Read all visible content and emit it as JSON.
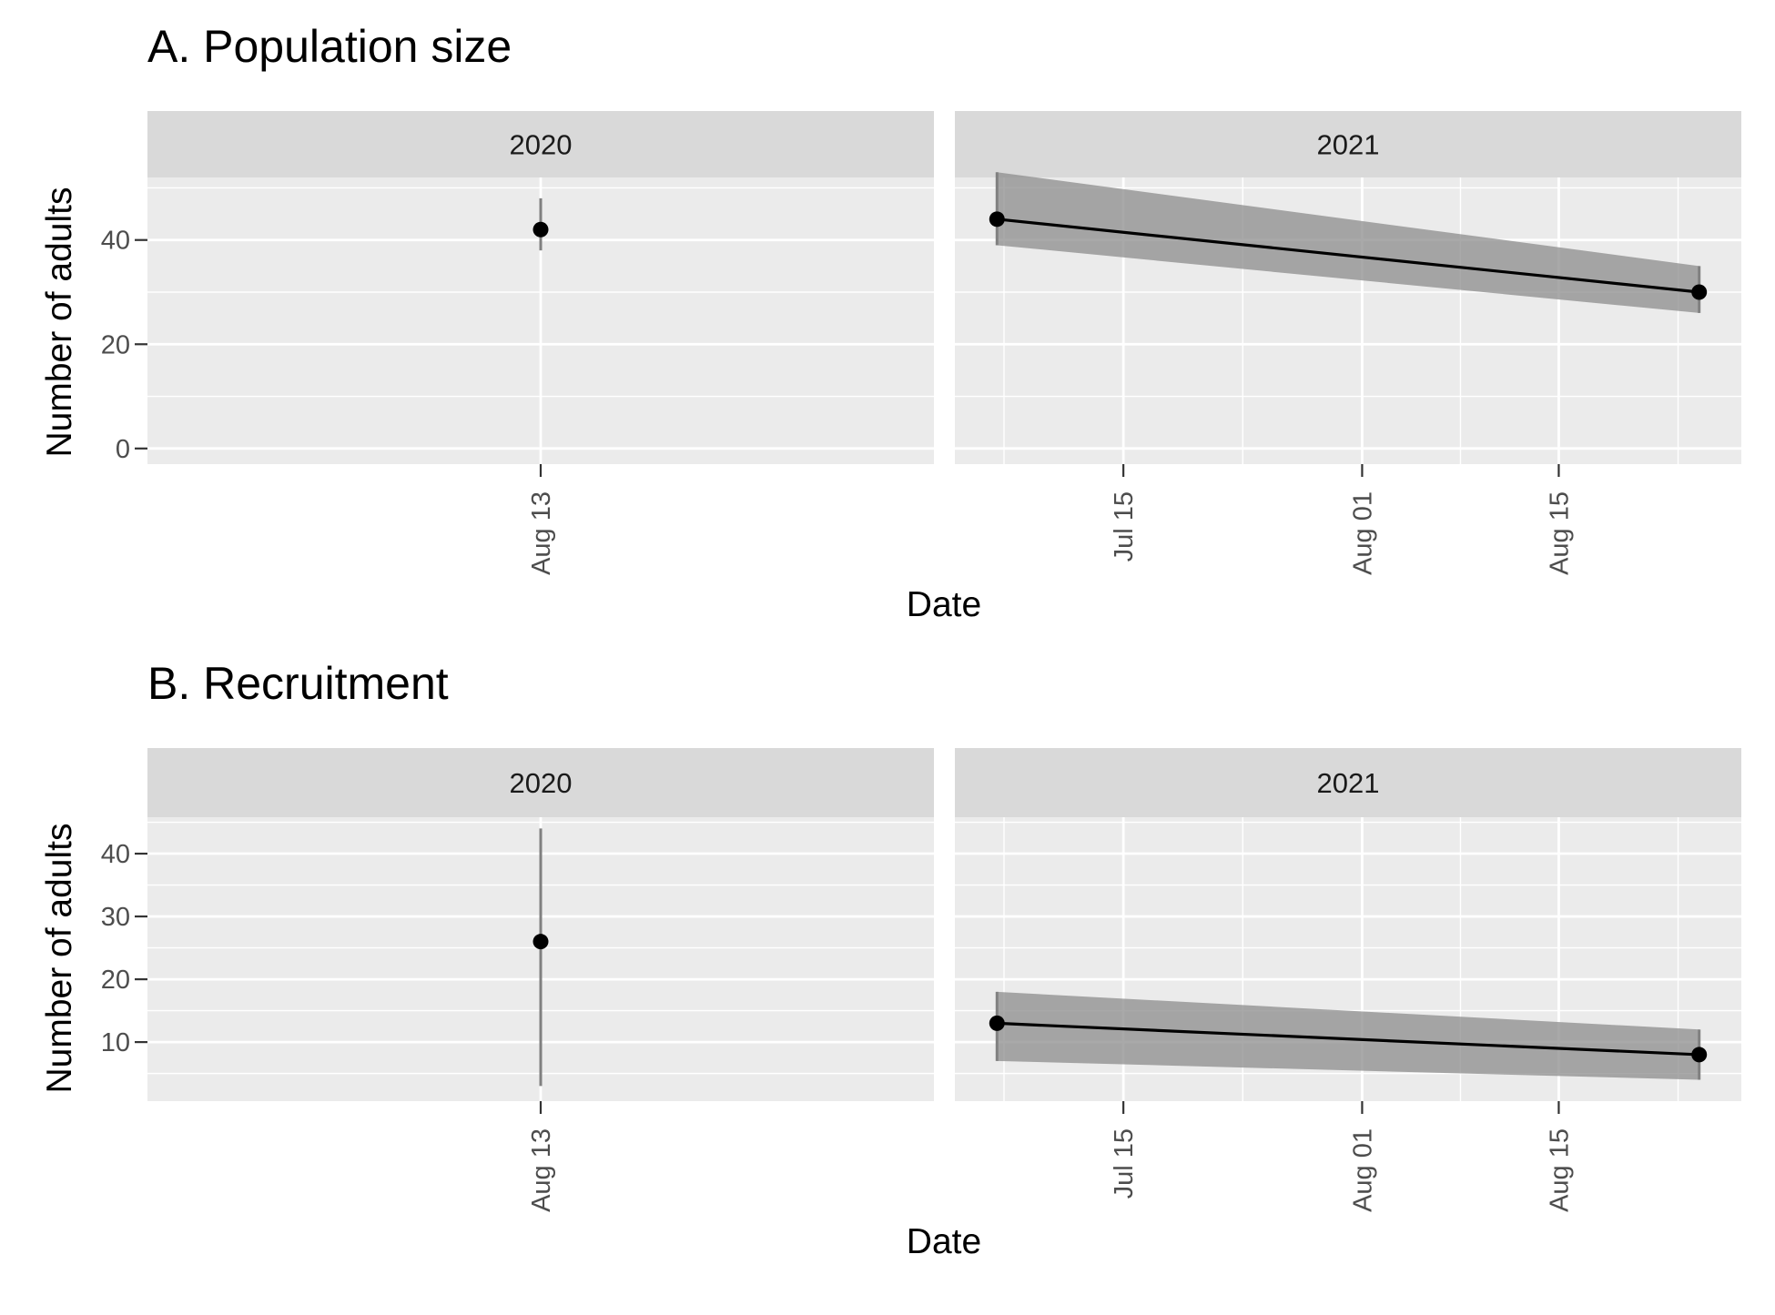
{
  "colors": {
    "panel_bg": "#ebebeb",
    "strip_bg": "#d9d9d9",
    "grid": "#ffffff",
    "ribbon": "#8c8c8c",
    "line": "#000000",
    "point": "#000000",
    "errorbar": "#808080"
  },
  "chart_data": [
    {
      "type": "line",
      "title": "A. Population size",
      "xlabel": "Date",
      "ylabel": "Number of adults",
      "yticks": [
        0,
        20,
        40
      ],
      "ylim": [
        -3,
        52
      ],
      "facets": [
        {
          "label": "2020",
          "xticks": [
            {
              "label": "Aug 13",
              "date": "2020-08-13"
            }
          ],
          "xlim": [
            "2020-06-19",
            "2020-10-07"
          ],
          "points": [
            {
              "date": "2020-08-13",
              "y": 42,
              "lower": 38,
              "upper": 48
            }
          ],
          "ribbon": false
        },
        {
          "label": "2021",
          "xticks": [
            {
              "label": "Jul 15",
              "date": "2021-07-15"
            },
            {
              "label": "Aug 01",
              "date": "2021-08-01"
            },
            {
              "label": "Aug 15",
              "date": "2021-08-15"
            }
          ],
          "xlim": [
            "2021-07-03",
            "2021-08-28"
          ],
          "points": [
            {
              "date": "2021-07-06",
              "y": 44,
              "lower": 39,
              "upper": 53
            },
            {
              "date": "2021-08-25",
              "y": 30,
              "lower": 26,
              "upper": 35
            }
          ],
          "ribbon": true
        }
      ]
    },
    {
      "type": "line",
      "title": "B. Recruitment",
      "xlabel": "Date",
      "ylabel": "Number of adults",
      "yticks": [
        10,
        20,
        30,
        40
      ],
      "ylim": [
        0.6,
        45.8
      ],
      "facets": [
        {
          "label": "2020",
          "xticks": [
            {
              "label": "Aug 13",
              "date": "2020-08-13"
            }
          ],
          "xlim": [
            "2020-06-19",
            "2020-10-07"
          ],
          "points": [
            {
              "date": "2020-08-13",
              "y": 26,
              "lower": 3,
              "upper": 44
            }
          ],
          "ribbon": false
        },
        {
          "label": "2021",
          "xticks": [
            {
              "label": "Jul 15",
              "date": "2021-07-15"
            },
            {
              "label": "Aug 01",
              "date": "2021-08-01"
            },
            {
              "label": "Aug 15",
              "date": "2021-08-15"
            }
          ],
          "xlim": [
            "2021-07-03",
            "2021-08-28"
          ],
          "points": [
            {
              "date": "2021-07-06",
              "y": 13,
              "lower": 7,
              "upper": 18
            },
            {
              "date": "2021-08-25",
              "y": 8,
              "lower": 4,
              "upper": 12
            }
          ],
          "ribbon": true
        }
      ]
    }
  ]
}
